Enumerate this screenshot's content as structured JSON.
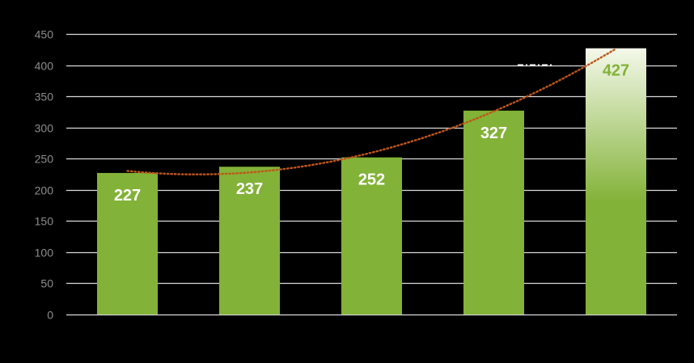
{
  "chart_data": {
    "type": "bar",
    "categories": [
      "",
      "",
      "",
      "",
      ""
    ],
    "values": [
      227,
      237,
      252,
      327,
      427
    ],
    "data_labels": [
      "227",
      "237",
      "252",
      "327",
      "427"
    ],
    "ylim": [
      0,
      450
    ],
    "yticks": [
      0,
      50,
      100,
      150,
      200,
      250,
      300,
      350,
      400,
      450
    ],
    "ytick_labels": [
      "0",
      "50",
      "100",
      "150",
      "200",
      "250",
      "300",
      "350",
      "400",
      "450"
    ],
    "grid": true,
    "trendline": {
      "type": "polynomial",
      "style": "dotted"
    },
    "colors": {
      "background": "#000000",
      "bar": "#82b237",
      "bar_highlight_top": "#f4f8ea",
      "grid": "#d9d9d9",
      "tick_label": "#8c8c8c",
      "data_label": "#ffffff",
      "data_label_highlight": "#82b237",
      "trendline": "#c0561b"
    }
  }
}
